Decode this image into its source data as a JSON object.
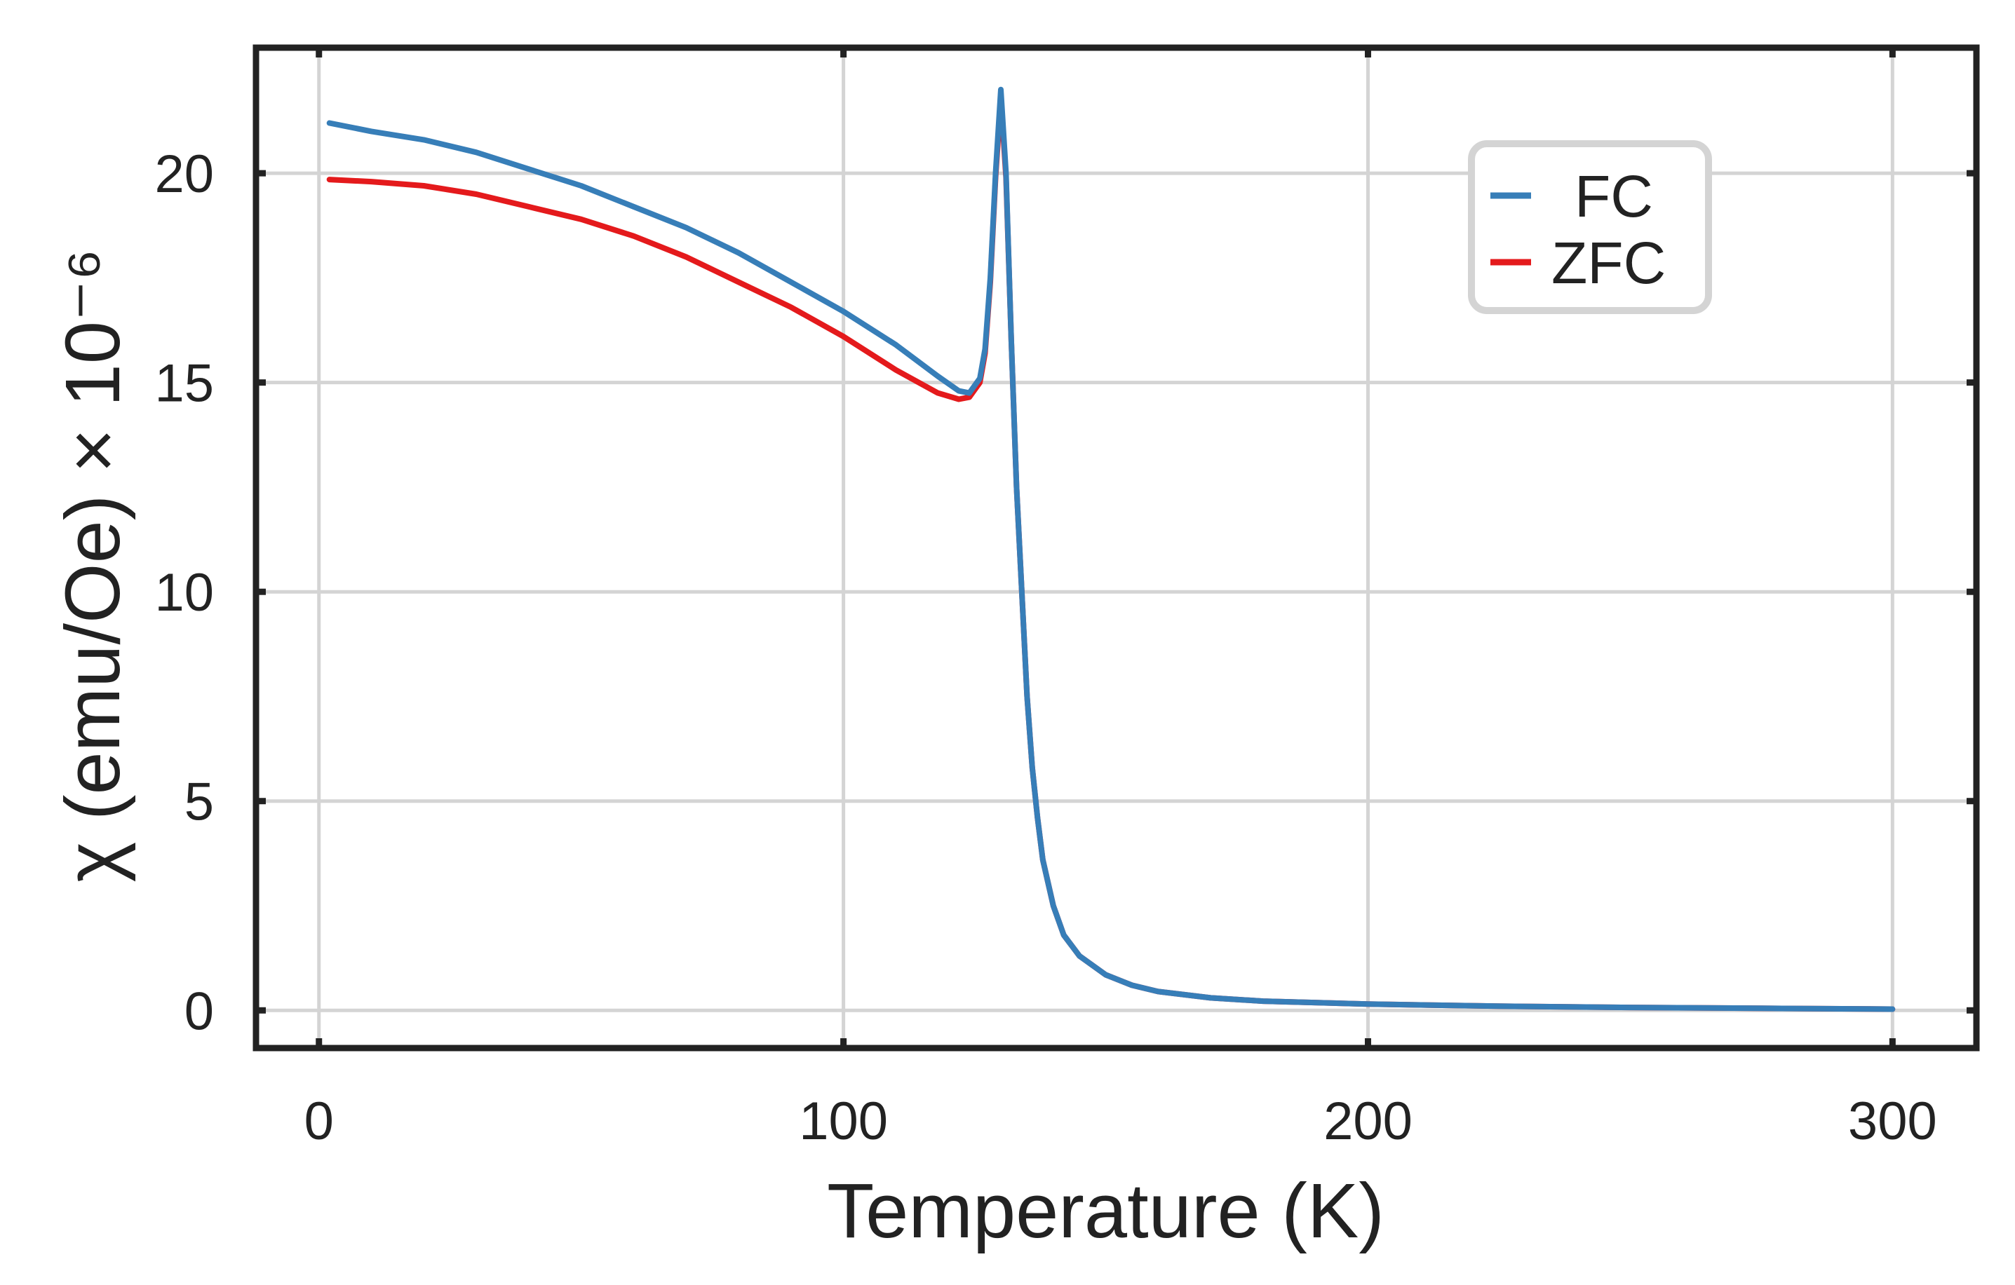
{
  "chart_data": {
    "type": "line",
    "title": "",
    "xlabel": "Temperature (K)",
    "ylabel": "χ (emu/Oe) × 10⁻⁶",
    "xlim": [
      -12,
      316
    ],
    "ylim": [
      -0.9,
      23
    ],
    "xticks": [
      0,
      100,
      200,
      300
    ],
    "yticks": [
      0,
      5,
      10,
      15,
      20
    ],
    "xtick_labels": [
      "0",
      "100",
      "200",
      "300"
    ],
    "ytick_labels": [
      "0",
      "5",
      "10",
      "15",
      "20"
    ],
    "grid": true,
    "legend": {
      "position": "top-right"
    },
    "series": [
      {
        "name": "FC",
        "color": "#377eb8",
        "x": [
          2,
          10,
          20,
          30,
          40,
          50,
          60,
          70,
          80,
          90,
          100,
          110,
          118,
          122,
          124,
          126,
          127,
          128,
          129,
          130,
          131,
          132,
          133,
          134,
          135,
          136,
          137,
          138,
          140,
          142,
          145,
          150,
          155,
          160,
          170,
          180,
          200,
          225,
          250,
          275,
          300
        ],
        "values": [
          21.2,
          21.0,
          20.8,
          20.5,
          20.1,
          19.7,
          19.2,
          18.7,
          18.1,
          17.4,
          16.7,
          15.9,
          15.15,
          14.8,
          14.75,
          15.1,
          15.8,
          17.5,
          20.0,
          22.0,
          20.0,
          16.0,
          12.5,
          10.0,
          7.5,
          5.8,
          4.6,
          3.6,
          2.5,
          1.8,
          1.3,
          0.85,
          0.6,
          0.45,
          0.3,
          0.22,
          0.15,
          0.1,
          0.07,
          0.05,
          0.03
        ]
      },
      {
        "name": "ZFC",
        "color": "#e41a1c",
        "x": [
          2,
          10,
          20,
          30,
          40,
          50,
          60,
          70,
          80,
          90,
          100,
          110,
          118,
          122,
          124,
          126,
          127,
          128,
          129,
          130,
          131,
          132,
          133,
          134,
          135,
          136,
          137,
          138,
          140,
          142,
          145,
          150,
          155,
          160,
          170,
          180,
          200,
          225,
          250,
          275,
          300
        ],
        "values": [
          19.85,
          19.8,
          19.7,
          19.5,
          19.2,
          18.9,
          18.5,
          18.0,
          17.4,
          16.8,
          16.1,
          15.3,
          14.75,
          14.6,
          14.65,
          15.0,
          15.7,
          17.4,
          19.9,
          21.8,
          19.9,
          16.0,
          12.5,
          10.0,
          7.5,
          5.8,
          4.6,
          3.6,
          2.5,
          1.8,
          1.3,
          0.85,
          0.6,
          0.45,
          0.3,
          0.22,
          0.15,
          0.1,
          0.07,
          0.05,
          0.03
        ]
      }
    ]
  }
}
